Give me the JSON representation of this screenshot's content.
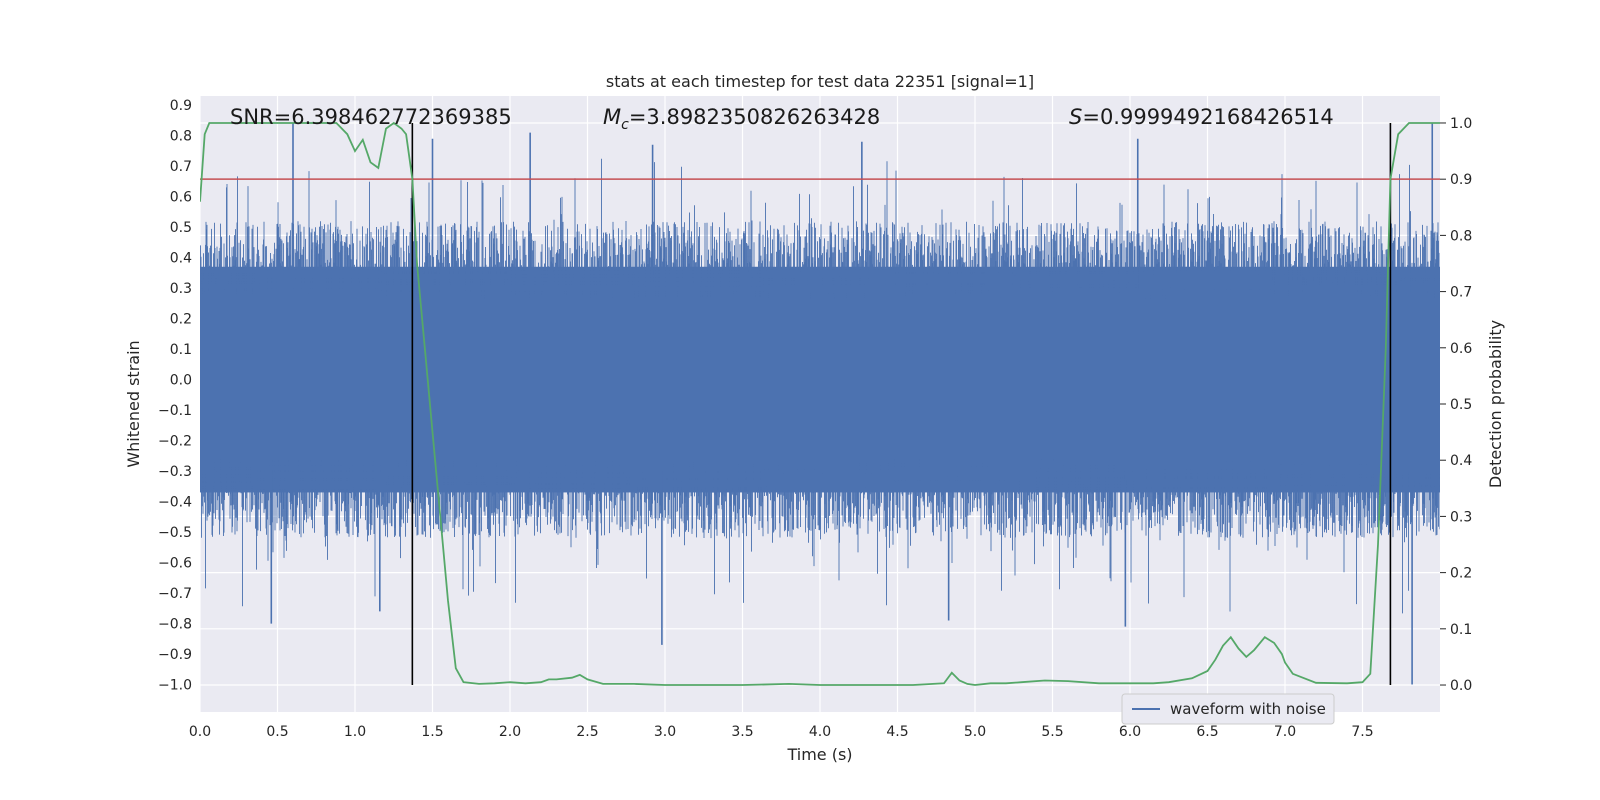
{
  "chart_data": {
    "type": "line",
    "title": "stats at each timestep for test data 22351 [signal=1]",
    "xlabel": "Time (s)",
    "ylabel_left": "Whitened strain",
    "ylabel_right": "Detection probability",
    "xlim": [
      0.0,
      8.0
    ],
    "ylim_left": [
      -1.09,
      0.93
    ],
    "ylim_right": [
      -0.048,
      1.048
    ],
    "x_ticks": [
      "0.0",
      "0.5",
      "1.0",
      "1.5",
      "2.0",
      "2.5",
      "3.0",
      "3.5",
      "4.0",
      "4.5",
      "5.0",
      "5.5",
      "6.0",
      "6.5",
      "7.0",
      "7.5"
    ],
    "y_ticks_left": [
      "0.9",
      "0.8",
      "0.7",
      "0.6",
      "0.5",
      "0.4",
      "0.3",
      "0.2",
      "0.1",
      "0.0",
      "−0.1",
      "−0.2",
      "−0.3",
      "−0.4",
      "−0.5",
      "−0.6",
      "−0.7",
      "−0.8",
      "−0.9",
      "−1.0"
    ],
    "y_ticks_right": [
      "1.0",
      "0.9",
      "0.8",
      "0.7",
      "0.6",
      "0.5",
      "0.4",
      "0.3",
      "0.2",
      "0.1",
      "0.0"
    ],
    "grid": true,
    "legend": {
      "placement": "bottom-right",
      "entries": [
        "waveform with noise"
      ]
    },
    "annotations": {
      "snr": "SNR=6.398462772369385",
      "mc_prefix": "M",
      "mc_sub": "c",
      "mc_value": "=3.8982350826263428",
      "s_prefix": "S",
      "s_value": "=0.9999492168426514"
    },
    "threshold": {
      "axis": "right",
      "value": 0.9,
      "color": "#c44e52"
    },
    "vertical_markers": [
      1.37,
      7.68
    ],
    "series": [
      {
        "name": "waveform with noise",
        "axis": "left",
        "kind": "noise-waveform",
        "color": "#4c72b0",
        "core_range": [
          -0.37,
          0.37
        ],
        "range": [
          -1.0,
          0.84
        ],
        "duration": 8.0
      },
      {
        "axis": "right",
        "color": "#55a868",
        "x": [
          0.0,
          0.03,
          0.06,
          0.1,
          0.15,
          0.2,
          0.3,
          0.4,
          0.5,
          0.6,
          0.7,
          0.8,
          0.88,
          0.95,
          1.0,
          1.05,
          1.1,
          1.15,
          1.2,
          1.25,
          1.3,
          1.33,
          1.37,
          1.4,
          1.45,
          1.5,
          1.55,
          1.6,
          1.65,
          1.7,
          1.8,
          1.9,
          2.0,
          2.1,
          2.2,
          2.25,
          2.3,
          2.4,
          2.45,
          2.5,
          2.6,
          2.8,
          3.0,
          3.2,
          3.5,
          3.8,
          4.0,
          4.2,
          4.4,
          4.6,
          4.8,
          4.85,
          4.9,
          4.95,
          5.0,
          5.1,
          5.2,
          5.3,
          5.45,
          5.6,
          5.8,
          6.0,
          6.15,
          6.25,
          6.4,
          6.5,
          6.55,
          6.6,
          6.65,
          6.7,
          6.75,
          6.8,
          6.87,
          6.93,
          6.98,
          7.0,
          7.05,
          7.2,
          7.4,
          7.5,
          7.55,
          7.6,
          7.65,
          7.68,
          7.73,
          7.8,
          7.85,
          7.95,
          8.0
        ],
        "values": [
          0.86,
          0.98,
          1.0,
          1.0,
          1.0,
          1.0,
          1.0,
          1.0,
          1.0,
          1.0,
          1.0,
          1.0,
          1.0,
          0.98,
          0.95,
          0.97,
          0.93,
          0.92,
          0.99,
          1.0,
          0.99,
          0.98,
          0.9,
          0.75,
          0.6,
          0.45,
          0.3,
          0.15,
          0.03,
          0.005,
          0.002,
          0.003,
          0.005,
          0.003,
          0.005,
          0.01,
          0.01,
          0.013,
          0.018,
          0.01,
          0.002,
          0.002,
          0.0,
          0.0,
          0.0,
          0.002,
          0.0,
          0.0,
          0.0,
          0.0,
          0.003,
          0.022,
          0.008,
          0.002,
          0.0,
          0.003,
          0.003,
          0.005,
          0.008,
          0.007,
          0.003,
          0.003,
          0.003,
          0.005,
          0.012,
          0.025,
          0.045,
          0.07,
          0.085,
          0.065,
          0.05,
          0.062,
          0.085,
          0.075,
          0.055,
          0.04,
          0.02,
          0.004,
          0.003,
          0.005,
          0.02,
          0.25,
          0.6,
          0.9,
          0.98,
          1.0,
          1.0,
          1.0,
          1.0
        ]
      }
    ]
  }
}
